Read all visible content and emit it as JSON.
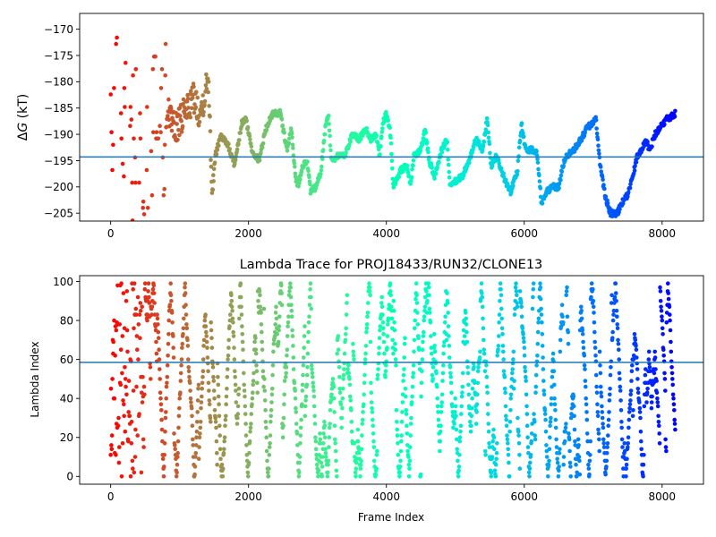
{
  "chart_data": [
    {
      "type": "scatter",
      "title": "",
      "xlabel": "",
      "ylabel": "ΔG (kT)",
      "ylabel_prefix": "Δ",
      "ylabel_var": "G",
      "ylabel_unit": " (kT)",
      "xlim": [
        -450,
        8600
      ],
      "ylim": [
        -206.5,
        -167
      ],
      "xticks": [
        0,
        2000,
        4000,
        6000,
        8000
      ],
      "yticks": [
        -205,
        -200,
        -195,
        -190,
        -185,
        -180,
        -175,
        -170
      ],
      "ytick_labels": [
        "−205",
        "−200",
        "−195",
        "−190",
        "−185",
        "−180",
        "−175",
        "−170"
      ],
      "hline": -194.3,
      "hline_color": "#1f77b4",
      "colormap": "rainbow (reversed: red at frame 0, violet at last frame)",
      "x_max": 8190,
      "trace_keypoints": [
        [
          0,
          -180
        ],
        [
          60,
          -190
        ],
        [
          120,
          -176
        ],
        [
          200,
          -190
        ],
        [
          260,
          -186
        ],
        [
          330,
          -194
        ],
        [
          420,
          -188
        ],
        [
          500,
          -197
        ],
        [
          560,
          -196
        ],
        [
          620,
          -188
        ],
        [
          700,
          -181
        ],
        [
          760,
          -190
        ],
        [
          840,
          -185
        ],
        [
          920,
          -189
        ],
        [
          1000,
          -188
        ],
        [
          1100,
          -185
        ],
        [
          1200,
          -183
        ],
        [
          1300,
          -186
        ],
        [
          1420,
          -179
        ],
        [
          1470,
          -200
        ],
        [
          1520,
          -194
        ],
        [
          1600,
          -190
        ],
        [
          1700,
          -192
        ],
        [
          1800,
          -196
        ],
        [
          1900,
          -188
        ],
        [
          1960,
          -187
        ],
        [
          2050,
          -193
        ],
        [
          2150,
          -195
        ],
        [
          2250,
          -189
        ],
        [
          2350,
          -186
        ],
        [
          2460,
          -186
        ],
        [
          2560,
          -193
        ],
        [
          2620,
          -189
        ],
        [
          2680,
          -198
        ],
        [
          2720,
          -200
        ],
        [
          2780,
          -196
        ],
        [
          2850,
          -195
        ],
        [
          2900,
          -201
        ],
        [
          2980,
          -200
        ],
        [
          3050,
          -197
        ],
        [
          3120,
          -188
        ],
        [
          3160,
          -186
        ],
        [
          3200,
          -195
        ],
        [
          3300,
          -194
        ],
        [
          3400,
          -194
        ],
        [
          3500,
          -190
        ],
        [
          3600,
          -191
        ],
        [
          3700,
          -189
        ],
        [
          3780,
          -191
        ],
        [
          3850,
          -190
        ],
        [
          3900,
          -194
        ],
        [
          3950,
          -188
        ],
        [
          4000,
          -186
        ],
        [
          4060,
          -190
        ],
        [
          4100,
          -200
        ],
        [
          4200,
          -197
        ],
        [
          4300,
          -196
        ],
        [
          4350,
          -200
        ],
        [
          4400,
          -194
        ],
        [
          4500,
          -193
        ],
        [
          4560,
          -189
        ],
        [
          4620,
          -195
        ],
        [
          4700,
          -198
        ],
        [
          4800,
          -193
        ],
        [
          4880,
          -191
        ],
        [
          4920,
          -200
        ],
        [
          5000,
          -199
        ],
        [
          5100,
          -198
        ],
        [
          5200,
          -195
        ],
        [
          5300,
          -191
        ],
        [
          5400,
          -193
        ],
        [
          5460,
          -187
        ],
        [
          5520,
          -196
        ],
        [
          5600,
          -194
        ],
        [
          5700,
          -198
        ],
        [
          5800,
          -201
        ],
        [
          5900,
          -197
        ],
        [
          5960,
          -188
        ],
        [
          6020,
          -193
        ],
        [
          6100,
          -193
        ],
        [
          6180,
          -193
        ],
        [
          6250,
          -203
        ],
        [
          6320,
          -201
        ],
        [
          6400,
          -200
        ],
        [
          6500,
          -200
        ],
        [
          6560,
          -196
        ],
        [
          6620,
          -194
        ],
        [
          6720,
          -193
        ],
        [
          6820,
          -191
        ],
        [
          6900,
          -189
        ],
        [
          6980,
          -188
        ],
        [
          7040,
          -187
        ],
        [
          7100,
          -196
        ],
        [
          7180,
          -202
        ],
        [
          7250,
          -205
        ],
        [
          7350,
          -205
        ],
        [
          7420,
          -203
        ],
        [
          7480,
          -202
        ],
        [
          7560,
          -199
        ],
        [
          7640,
          -194
        ],
        [
          7700,
          -193
        ],
        [
          7760,
          -191
        ],
        [
          7820,
          -193
        ],
        [
          7900,
          -190
        ],
        [
          8000,
          -188
        ],
        [
          8080,
          -187
        ],
        [
          8190,
          -186
        ]
      ]
    },
    {
      "type": "scatter",
      "title": "Lambda Trace for PROJ18433/RUN32/CLONE13",
      "xlabel": "Frame Index",
      "ylabel": "Lambda Index",
      "xlim": [
        -450,
        8600
      ],
      "ylim": [
        -4,
        103
      ],
      "xticks": [
        0,
        2000,
        4000,
        6000,
        8000
      ],
      "yticks": [
        0,
        20,
        40,
        60,
        80,
        100
      ],
      "hline": 58.5,
      "hline_color": "#1f77b4",
      "colormap": "rainbow (reversed: red at frame 0, violet at last frame)",
      "x_max": 8190,
      "lambda_range": [
        0,
        99
      ]
    }
  ]
}
